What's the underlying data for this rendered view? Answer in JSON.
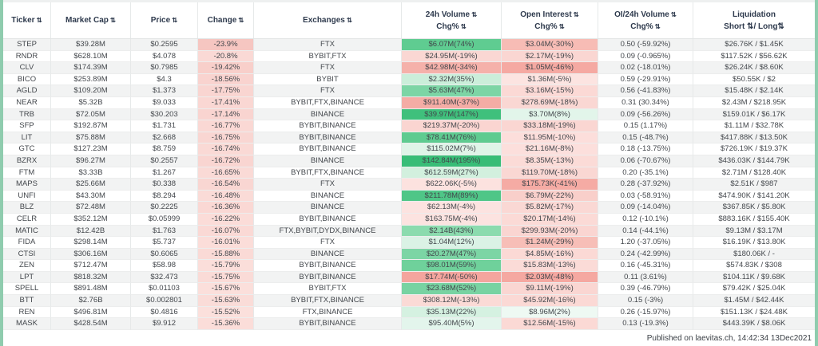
{
  "colors": {
    "accent_bar": "#8fccae",
    "row_stripe": "#f2f3f3",
    "header_text": "#2e3a4d",
    "body_text": "#43474c"
  },
  "icons": {
    "sort": "⇅"
  },
  "table": {
    "columns": [
      {
        "field": "ticker",
        "line1": "Ticker",
        "line2": "",
        "sortable": true,
        "sortable2": false
      },
      {
        "field": "market_cap",
        "line1": "Market Cap",
        "line2": "",
        "sortable": true,
        "sortable2": false
      },
      {
        "field": "price",
        "line1": "Price",
        "line2": "",
        "sortable": true,
        "sortable2": false
      },
      {
        "field": "change",
        "line1": "Change",
        "line2": "",
        "sortable": true,
        "sortable2": false
      },
      {
        "field": "exchanges",
        "line1": "Exchanges",
        "line2": "",
        "sortable": true,
        "sortable2": false
      },
      {
        "field": "volume",
        "line1": "24h Volume",
        "line2": "Chg%",
        "sortable": true,
        "sortable2": true
      },
      {
        "field": "open_interest",
        "line1": "Open Interest",
        "line2": "Chg%",
        "sortable": true,
        "sortable2": true
      },
      {
        "field": "oi_volume",
        "line1": "OI/24h Volume",
        "line2": "Chg%",
        "sortable": true,
        "sortable2": true
      },
      {
        "field": "liquidation",
        "line1": "Liquidation",
        "line2": "Short ⇅/ Long⇅",
        "sortable": false,
        "sortable2": false
      }
    ],
    "rows": [
      {
        "ticker": "STEP",
        "market_cap": "$39.28M",
        "price": "$0.2595",
        "change": "-23.9%",
        "change_bg": "#f6c6c1",
        "exchanges": "FTX",
        "volume": "$6.07M(74%)",
        "volume_bg": "#5fcc91",
        "open_interest": "$3.04M(-30%)",
        "open_interest_bg": "#f7bcb5",
        "oi_volume": "0.50 (-59.92%)",
        "liquidation": "$26.76K / $1.45K"
      },
      {
        "ticker": "RNDR",
        "market_cap": "$628.10M",
        "price": "$4.078",
        "change": "-20.8%",
        "change_bg": "#fad9d5",
        "exchanges": "BYBIT,FTX",
        "volume": "$24.95M(-19%)",
        "volume_bg": "#fad7d3",
        "open_interest": "$2.17M(-19%)",
        "open_interest_bg": "#fad6d2",
        "oi_volume": "0.09 (-0.965%)",
        "liquidation": "$117.52K / $56.62K"
      },
      {
        "ticker": "CLV",
        "market_cap": "$174.39M",
        "price": "$0.7985",
        "change": "-19.42%",
        "change_bg": "#f8cfca",
        "exchanges": "FTX",
        "volume": "$42.98M(-34%)",
        "volume_bg": "#f5b1aa",
        "open_interest": "$1.05M(-46%)",
        "open_interest_bg": "#f5a9a2",
        "oi_volume": "0.02 (-18.01%)",
        "liquidation": "$26.24K / $8.60K"
      },
      {
        "ticker": "BICO",
        "market_cap": "$253.89M",
        "price": "$4.3",
        "change": "-18.56%",
        "change_bg": "#f9d3cf",
        "exchanges": "BYBIT",
        "volume": "$2.32M(35%)",
        "volume_bg": "#cbeeda",
        "open_interest": "$1.36M(-5%)",
        "open_interest_bg": "#fce4e1",
        "oi_volume": "0.59 (-29.91%)",
        "liquidation": "$50.55K / $2"
      },
      {
        "ticker": "AGLD",
        "market_cap": "$109.20M",
        "price": "$1.373",
        "change": "-17.75%",
        "change_bg": "#f9d5d1",
        "exchanges": "FTX",
        "volume": "$5.63M(47%)",
        "volume_bg": "#7cd5a5",
        "open_interest": "$3.16M(-15%)",
        "open_interest_bg": "#fbd9d5",
        "oi_volume": "0.56 (-41.83%)",
        "liquidation": "$15.48K / $2.14K"
      },
      {
        "ticker": "NEAR",
        "market_cap": "$5.32B",
        "price": "$9.033",
        "change": "-17.41%",
        "change_bg": "#fad7d3",
        "exchanges": "BYBIT,FTX,BINANCE",
        "volume": "$911.40M(-37%)",
        "volume_bg": "#f5aca5",
        "open_interest": "$278.69M(-18%)",
        "open_interest_bg": "#fad7d3",
        "oi_volume": "0.31 (30.34%)",
        "liquidation": "$2.43M / $218.95K"
      },
      {
        "ticker": "TRB",
        "market_cap": "$72.05M",
        "price": "$30.203",
        "change": "-17.14%",
        "change_bg": "#f9d4d0",
        "exchanges": "BINANCE",
        "volume": "$39.97M(147%)",
        "volume_bg": "#3fc07c",
        "open_interest": "$3.70M(8%)",
        "open_interest_bg": "#e2f5ea",
        "oi_volume": "0.09 (-56.26%)",
        "liquidation": "$159.01K / $6.17K"
      },
      {
        "ticker": "SFP",
        "market_cap": "$192.87M",
        "price": "$1.731",
        "change": "-16.77%",
        "change_bg": "#fad8d4",
        "exchanges": "BYBIT,BINANCE",
        "volume": "$219.37M(-20%)",
        "volume_bg": "#fad5d1",
        "open_interest": "$33.18M(-19%)",
        "open_interest_bg": "#fad6d2",
        "oi_volume": "0.15 (1.17%)",
        "liquidation": "$1.11M / $32.78K"
      },
      {
        "ticker": "LIT",
        "market_cap": "$75.88M",
        "price": "$2.668",
        "change": "-16.75%",
        "change_bg": "#f9d6d2",
        "exchanges": "BYBIT,BINANCE",
        "volume": "$78.41M(76%)",
        "volume_bg": "#5ecb90",
        "open_interest": "$11.95M(-10%)",
        "open_interest_bg": "#fcdedb",
        "oi_volume": "0.15 (-48.7%)",
        "liquidation": "$417.88K / $13.50K"
      },
      {
        "ticker": "GTC",
        "market_cap": "$127.23M",
        "price": "$8.759",
        "change": "-16.74%",
        "change_bg": "#fad9d5",
        "exchanges": "BYBIT,BINANCE",
        "volume": "$115.02M(7%)",
        "volume_bg": "#dff4e8",
        "open_interest": "$21.16M(-8%)",
        "open_interest_bg": "#fcdfdc",
        "oi_volume": "0.18 (-13.75%)",
        "liquidation": "$726.19K / $19.37K"
      },
      {
        "ticker": "BZRX",
        "market_cap": "$96.27M",
        "price": "$0.2557",
        "change": "-16.72%",
        "change_bg": "#f9d5d1",
        "exchanges": "BINANCE",
        "volume": "$142.84M(195%)",
        "volume_bg": "#38bd77",
        "open_interest": "$8.35M(-13%)",
        "open_interest_bg": "#fbdbd7",
        "oi_volume": "0.06 (-70.67%)",
        "liquidation": "$436.03K / $144.79K"
      },
      {
        "ticker": "FTM",
        "market_cap": "$3.33B",
        "price": "$1.267",
        "change": "-16.65%",
        "change_bg": "#fadad6",
        "exchanges": "BYBIT,FTX,BINANCE",
        "volume": "$612.59M(27%)",
        "volume_bg": "#d2f0de",
        "open_interest": "$119.70M(-18%)",
        "open_interest_bg": "#fad7d3",
        "oi_volume": "0.20 (-35.1%)",
        "liquidation": "$2.71M / $128.40K"
      },
      {
        "ticker": "MAPS",
        "market_cap": "$25.66M",
        "price": "$0.338",
        "change": "-16.54%",
        "change_bg": "#f9d6d2",
        "exchanges": "FTX",
        "volume": "$622.06K(-5%)",
        "volume_bg": "#fce2df",
        "open_interest": "$175.73K(-41%)",
        "open_interest_bg": "#f5aba4",
        "oi_volume": "0.28 (-37.92%)",
        "liquidation": "$2.51K / $987"
      },
      {
        "ticker": "UNFI",
        "market_cap": "$43.30M",
        "price": "$8.294",
        "change": "-16.48%",
        "change_bg": "#fadbd7",
        "exchanges": "BINANCE",
        "volume": "$211.78M(89%)",
        "volume_bg": "#4fc687",
        "open_interest": "$6.79M(-22%)",
        "open_interest_bg": "#f9cfca",
        "oi_volume": "0.03 (-58.91%)",
        "liquidation": "$474.90K / $141.20K"
      },
      {
        "ticker": "BLZ",
        "market_cap": "$72.48M",
        "price": "$0.2225",
        "change": "-16.36%",
        "change_bg": "#fad8d4",
        "exchanges": "BINANCE",
        "volume": "$62.13M(-4%)",
        "volume_bg": "#fce3e0",
        "open_interest": "$5.82M(-17%)",
        "open_interest_bg": "#fad8d4",
        "oi_volume": "0.09 (-14.04%)",
        "liquidation": "$367.85K / $5.80K"
      },
      {
        "ticker": "CELR",
        "market_cap": "$352.12M",
        "price": "$0.05999",
        "change": "-16.22%",
        "change_bg": "#fbdcd8",
        "exchanges": "BYBIT,BINANCE",
        "volume": "$163.75M(-4%)",
        "volume_bg": "#fce3e0",
        "open_interest": "$20.17M(-14%)",
        "open_interest_bg": "#fbdad6",
        "oi_volume": "0.12 (-10.1%)",
        "liquidation": "$883.16K / $155.40K"
      },
      {
        "ticker": "MATIC",
        "market_cap": "$12.42B",
        "price": "$1.763",
        "change": "-16.07%",
        "change_bg": "#fad9d5",
        "exchanges": "FTX,BYBIT,DYDX,BINANCE",
        "volume": "$2.14B(43%)",
        "volume_bg": "#8bdbae",
        "open_interest": "$299.93M(-20%)",
        "open_interest_bg": "#fad5d1",
        "oi_volume": "0.14 (-44.1%)",
        "liquidation": "$9.13M / $3.17M"
      },
      {
        "ticker": "FIDA",
        "market_cap": "$298.14M",
        "price": "$5.737",
        "change": "-16.01%",
        "change_bg": "#fbddd9",
        "exchanges": "FTX",
        "volume": "$1.04M(12%)",
        "volume_bg": "#daf2e5",
        "open_interest": "$1.24M(-29%)",
        "open_interest_bg": "#f7beb7",
        "oi_volume": "1.20 (-37.05%)",
        "liquidation": "$16.19K / $13.80K"
      },
      {
        "ticker": "CTSI",
        "market_cap": "$306.16M",
        "price": "$0.6065",
        "change": "-15.88%",
        "change_bg": "#fadad6",
        "exchanges": "BINANCE",
        "volume": "$20.27M(47%)",
        "volume_bg": "#7cd5a5",
        "open_interest": "$4.85M(-16%)",
        "open_interest_bg": "#fbd9d5",
        "oi_volume": "0.24 (-42.99%)",
        "liquidation": "$180.06K / -"
      },
      {
        "ticker": "ZEN",
        "market_cap": "$712.47M",
        "price": "$58.98",
        "change": "-15.79%",
        "change_bg": "#fbdeda",
        "exchanges": "BYBIT,BINANCE",
        "volume": "$98.01M(59%)",
        "volume_bg": "#6fd19b",
        "open_interest": "$15.83M(-13%)",
        "open_interest_bg": "#fbdbd7",
        "oi_volume": "0.16 (-45.31%)",
        "liquidation": "$574.83K / $308"
      },
      {
        "ticker": "LPT",
        "market_cap": "$818.32M",
        "price": "$32.473",
        "change": "-15.75%",
        "change_bg": "#fadbd7",
        "exchanges": "BYBIT,BINANCE",
        "volume": "$17.74M(-50%)",
        "volume_bg": "#f4a59e",
        "open_interest": "$2.03M(-48%)",
        "open_interest_bg": "#f5a8a1",
        "oi_volume": "0.11 (3.61%)",
        "liquidation": "$104.11K / $9.68K"
      },
      {
        "ticker": "SPELL",
        "market_cap": "$891.48M",
        "price": "$0.01103",
        "change": "-15.67%",
        "change_bg": "#fbdfdb",
        "exchanges": "BYBIT,FTX",
        "volume": "$23.68M(52%)",
        "volume_bg": "#78d3a2",
        "open_interest": "$9.11M(-19%)",
        "open_interest_bg": "#fad6d2",
        "oi_volume": "0.39 (-46.79%)",
        "liquidation": "$79.42K / $25.04K"
      },
      {
        "ticker": "BTT",
        "market_cap": "$2.76B",
        "price": "$0.002801",
        "change": "-15.63%",
        "change_bg": "#fadcd8",
        "exchanges": "BYBIT,FTX,BINANCE",
        "volume": "$308.12M(-13%)",
        "volume_bg": "#fbdad6",
        "open_interest": "$45.92M(-16%)",
        "open_interest_bg": "#fbd9d5",
        "oi_volume": "0.15 (-3%)",
        "liquidation": "$1.45M / $42.44K"
      },
      {
        "ticker": "REN",
        "market_cap": "$496.81M",
        "price": "$0.4816",
        "change": "-15.52%",
        "change_bg": "#fbe0dc",
        "exchanges": "FTX,BINANCE",
        "volume": "$35.13M(22%)",
        "volume_bg": "#d5f1e1",
        "open_interest": "$8.96M(2%)",
        "open_interest_bg": "#eef9f3",
        "oi_volume": "0.26 (-15.97%)",
        "liquidation": "$151.13K / $24.48K"
      },
      {
        "ticker": "MASK",
        "market_cap": "$428.54M",
        "price": "$9.912",
        "change": "-15.36%",
        "change_bg": "#fbddd9",
        "exchanges": "BYBIT,BINANCE",
        "volume": "$95.40M(5%)",
        "volume_bg": "#e3f5ec",
        "open_interest": "$12.56M(-15%)",
        "open_interest_bg": "#fbd9d5",
        "oi_volume": "0.13 (-19.3%)",
        "liquidation": "$443.39K / $8.06K"
      }
    ]
  },
  "footer": {
    "text": "Published on laevitas.ch, 14:42:34 13Dec2021"
  }
}
